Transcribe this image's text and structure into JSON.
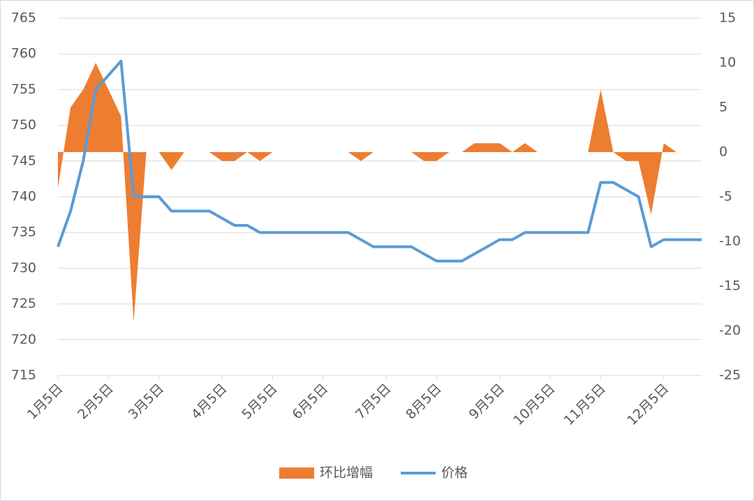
{
  "chart_data": {
    "type": "area-line",
    "categories": [
      "1月5日",
      null,
      null,
      null,
      "2月5日",
      null,
      null,
      null,
      "3月5日",
      null,
      null,
      null,
      null,
      "4月5日",
      null,
      null,
      null,
      "5月5日",
      null,
      null,
      null,
      "6月5日",
      null,
      null,
      null,
      null,
      "7月5日",
      null,
      null,
      null,
      "8月5日",
      null,
      null,
      null,
      null,
      "9月5日",
      null,
      null,
      null,
      "10月5日",
      null,
      null,
      null,
      "11月5日",
      null,
      null,
      null,
      null,
      "12月5日",
      null,
      null,
      null
    ],
    "series": [
      {
        "name": "环比增幅",
        "type": "area",
        "axis": "y2",
        "color": "#ed7d31",
        "values": [
          -4,
          5,
          7,
          10,
          7,
          4,
          -19,
          0,
          0,
          -2,
          0,
          0,
          0,
          -1,
          -1,
          0,
          -1,
          0,
          0,
          0,
          0,
          0,
          0,
          0,
          -1,
          0,
          0,
          0,
          0,
          -1,
          -1,
          0,
          0,
          1,
          1,
          1,
          0,
          1,
          0,
          0,
          0,
          0,
          0,
          7,
          0,
          -1,
          -1,
          -7,
          1,
          0,
          0,
          0
        ]
      },
      {
        "name": "价格",
        "type": "line",
        "color": "#5b9bd5",
        "values": [
          733,
          738,
          745,
          755,
          757,
          759,
          740,
          740,
          740,
          738,
          738,
          738,
          738,
          737,
          736,
          736,
          735,
          735,
          735,
          735,
          735,
          735,
          735,
          735,
          734,
          733,
          733,
          733,
          733,
          732,
          731,
          731,
          731,
          732,
          733,
          734,
          734,
          735,
          735,
          735,
          735,
          735,
          735,
          742,
          742,
          741,
          740,
          733,
          734,
          734,
          734,
          734
        ]
      }
    ],
    "ylim": [
      715,
      765
    ],
    "yticks": [
      715,
      720,
      725,
      730,
      735,
      740,
      745,
      750,
      755,
      760,
      765
    ],
    "y2lim": [
      -25,
      15
    ],
    "y2ticks": [
      -25,
      -20,
      -15,
      -10,
      -5,
      0,
      5,
      10,
      15
    ],
    "grid": true,
    "legend": "bottom"
  }
}
